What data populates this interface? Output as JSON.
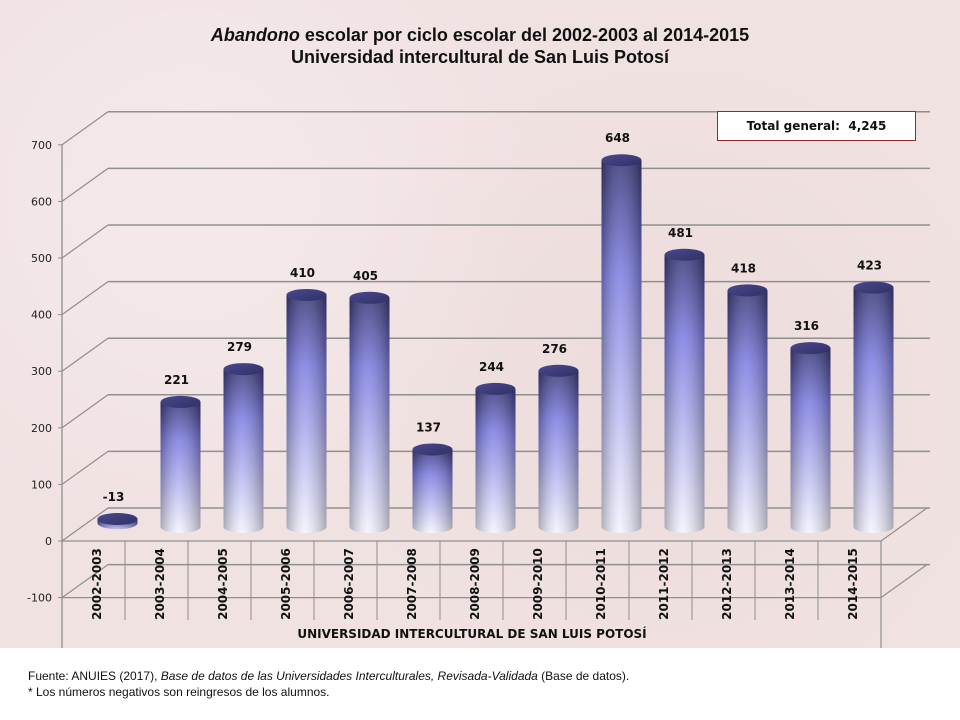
{
  "chart_data": {
    "type": "bar",
    "style": "3d-cylinder",
    "title_italic": "Abandono",
    "title_rest": " escolar por ciclo escolar del 2002-2003 al 2014-2015",
    "subtitle": "Universidad intercultural de San Luis Potosí",
    "xlabel": "UNIVERSIDAD INTERCULTURAL DE SAN LUIS POTOSÍ",
    "ylabel": "",
    "ylim": [
      -100,
      700
    ],
    "yticks": [
      -100,
      0,
      100,
      200,
      300,
      400,
      500,
      600,
      700
    ],
    "grid": true,
    "legend": "none",
    "categories": [
      "2002-2003",
      "2003-2004",
      "2004-2005",
      "2005-2006",
      "2006-2007",
      "2007-2008",
      "2008-2009",
      "2009-2010",
      "2010-2011",
      "2011-2012",
      "2012-2013",
      "2013-2014",
      "2014-2015"
    ],
    "values": [
      -13,
      221,
      279,
      410,
      405,
      137,
      244,
      276,
      648,
      481,
      418,
      316,
      423
    ],
    "data_labels": [
      "-13",
      "221",
      "279",
      "410",
      "405",
      "137",
      "244",
      "276",
      "648",
      "481",
      "418",
      "316",
      "423"
    ],
    "annotation": {
      "label": "Total general:",
      "value": "4,245"
    },
    "colors": {
      "bar_top": "#3c3c7c",
      "bar_mid": "#8484e8",
      "bar_bottom": "#f2f2ff",
      "background": "#f1e2e2",
      "grid": "#8a8a8a",
      "box_border": "#8b2a2a"
    }
  },
  "footer": {
    "source_prefix": "Fuente: ANUIES (2017), ",
    "source_italic": "Base de datos de las Universidades  Interculturales, Revisada-Validada",
    "source_suffix": "  (Base de datos).",
    "note": "* Los números negativos  son reingresos  de los alumnos."
  }
}
